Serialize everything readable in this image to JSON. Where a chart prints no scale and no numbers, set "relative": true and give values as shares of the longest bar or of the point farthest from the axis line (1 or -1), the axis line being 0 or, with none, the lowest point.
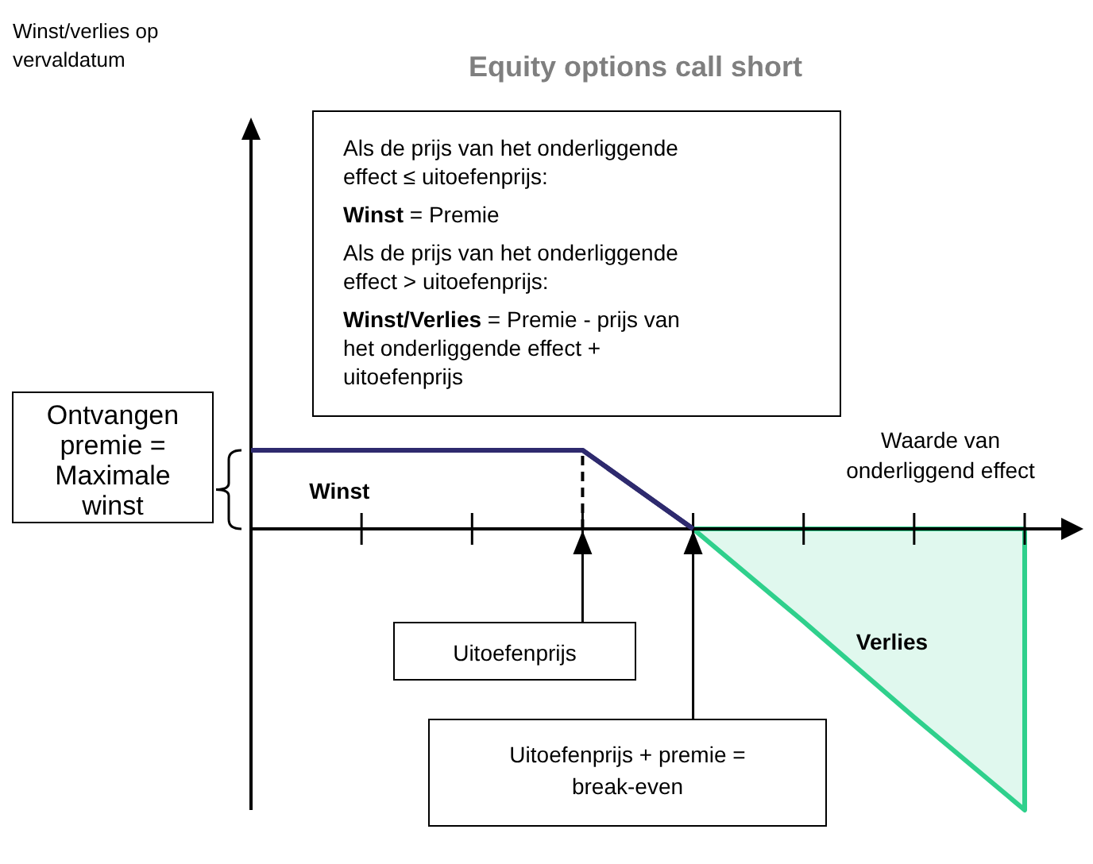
{
  "chart_data": {
    "type": "line",
    "title": "Equity options call short",
    "xlabel": "Waarde van onderliggend effect",
    "relative": true,
    "legend": false,
    "categories": [
      null,
      null,
      null,
      null,
      null,
      null,
      null,
      null
    ],
    "series": [
      {
        "name": "Winst",
        "color": "#2e2a6e",
        "values": [
          0.28,
          0.28,
          0.28,
          0.28,
          0,
          null,
          null,
          null
        ]
      },
      {
        "name": "Verlies",
        "type": "area",
        "color": "#2fd08c",
        "values": [
          null,
          null,
          null,
          null,
          0,
          -0.33,
          -0.67,
          -1
        ]
      }
    ],
    "annotations": [
      "Als de prijs van het onderliggende effect ≤ uitoefenprijs:",
      "Winst = Premie",
      "Als de prijs van het onderliggende effect > uitoefenprijs:",
      "Winst/Verlies = Premie - prijs van het onderliggende effect + uitoefenprijs",
      "Ontvangen premie = Maximale winst",
      "Uitoefenprijs",
      "Uitoefenprijs + premie = break-even",
      "Winst/verlies op vervaldatum"
    ]
  }
}
